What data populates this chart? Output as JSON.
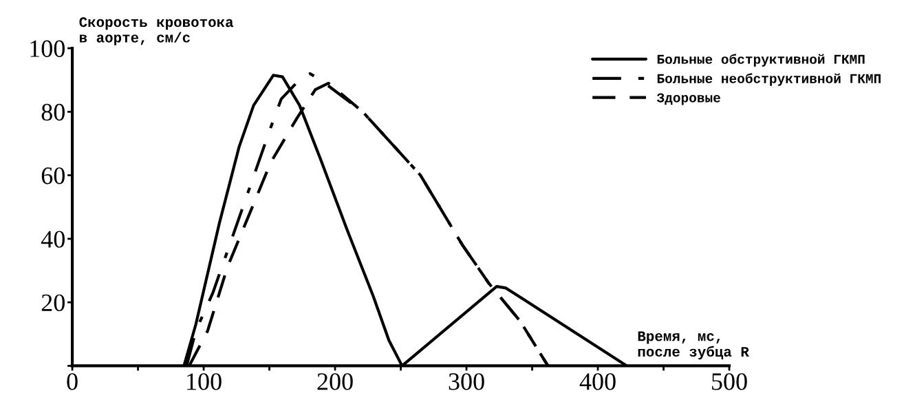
{
  "chart_data": {
    "type": "line",
    "ylabel": "Скорость кровотока\nв аорте, см/с",
    "xlabel": "Время, мс,\nпосле зубца R",
    "xlim": [
      0,
      500
    ],
    "ylim": [
      0,
      100
    ],
    "xticks": [
      0,
      {
        "value": 50,
        "label": null
      },
      100,
      {
        "value": 150,
        "label": null
      },
      200,
      {
        "value": 250,
        "label": null
      },
      300,
      {
        "value": 350,
        "label": null
      },
      400,
      {
        "value": 450,
        "label": null
      },
      500
    ],
    "yticks": [
      {
        "value": 0,
        "label": null
      },
      20,
      40,
      60,
      80,
      100
    ],
    "grid": false,
    "legend": "top right",
    "series": [
      {
        "name": "Больные обструктивной ГКМП",
        "color": "#000000",
        "line_style": "solid",
        "x": [
          85,
          94,
          112,
          127,
          138,
          153,
          160,
          173,
          189,
          209,
          229,
          241,
          251,
          323,
          330,
          422
        ],
        "values": [
          0,
          13,
          45,
          69,
          82,
          91.5,
          91,
          82,
          65,
          43,
          22,
          8,
          0,
          25,
          24.5,
          0
        ]
      },
      {
        "name": "Больные необструктивной ГКМП",
        "color": "#000000",
        "line_style": "dashdot",
        "x": [
          87,
          94,
          107,
          129,
          140,
          151,
          159,
          175,
          181,
          189,
          221,
          265,
          297,
          317,
          341,
          362
        ],
        "values": [
          0,
          11,
          23,
          49,
          62,
          75,
          84,
          91,
          92,
          90,
          80,
          60,
          38,
          26,
          14,
          0
        ]
      },
      {
        "name": "Здоровые",
        "color": "#000000",
        "line_style": "dashed",
        "x": [
          89,
          103,
          118,
          134,
          151,
          171,
          185,
          195,
          221,
          265,
          297,
          317,
          341,
          362
        ],
        "values": [
          0,
          11,
          31,
          47,
          64,
          78,
          87,
          89,
          80,
          60,
          38,
          26,
          14,
          0
        ]
      }
    ]
  }
}
